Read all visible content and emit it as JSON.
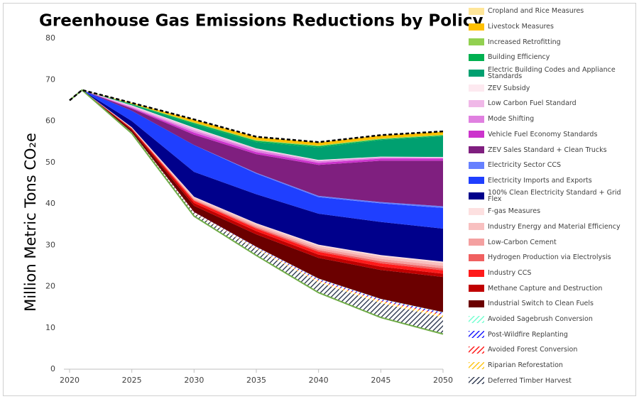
{
  "chart_data": {
    "type": "stacked_area",
    "title": "Greenhouse Gas Emissions Reductions by Policy",
    "y_label": "Million Metric Tons CO₂e",
    "x": [
      2020,
      2021,
      2025,
      2030,
      2035,
      2040,
      2045,
      2050
    ],
    "xlim": [
      2020,
      2050
    ],
    "xticks": [
      2020,
      2025,
      2030,
      2035,
      2040,
      2045,
      2050
    ],
    "ylim": [
      0,
      80
    ],
    "yticks": [
      0,
      10,
      20,
      30,
      40,
      50,
      60,
      70,
      80
    ],
    "net_emissions": [
      65,
      67.5,
      57,
      37,
      27.5,
      18.5,
      12.5,
      8.5
    ],
    "series": [
      {
        "name": "Cropland and Rice Measures",
        "color": "#ffe699",
        "values": [
          0,
          0,
          0,
          0.1,
          0.1,
          0.1,
          0.1,
          0.1
        ]
      },
      {
        "name": "Livestock Measures",
        "color": "#ffc000",
        "values": [
          0,
          0,
          0.2,
          0.6,
          0.7,
          0.7,
          0.7,
          0.7
        ]
      },
      {
        "name": "Increased Retrofitting",
        "color": "#92d050",
        "values": [
          0,
          0,
          0.1,
          0.2,
          0.2,
          0.2,
          0.2,
          0.2
        ]
      },
      {
        "name": "Building Efficiency",
        "color": "#00b050",
        "values": [
          0,
          0,
          0.1,
          0.3,
          0.3,
          0.3,
          0.2,
          0.2
        ]
      },
      {
        "name": "Electric Building Codes and Appliance Standards",
        "color": "#00a070",
        "values": [
          0,
          0,
          0.2,
          0.8,
          1.5,
          3,
          4,
          5
        ]
      },
      {
        "name": "ZEV Subsidy",
        "color": "#fde9f0",
        "values": [
          0,
          0,
          0.1,
          0.2,
          0.1,
          0.1,
          0.1,
          0.1
        ]
      },
      {
        "name": "Low Carbon Fuel Standard",
        "color": "#f0b8e8",
        "values": [
          0,
          0,
          0.3,
          0.5,
          0.3,
          0.2,
          0.1,
          0.1
        ]
      },
      {
        "name": "Mode Shifting",
        "color": "#e080e0",
        "values": [
          0,
          0,
          0.2,
          0.5,
          0.5,
          0.4,
          0.3,
          0.2
        ]
      },
      {
        "name": "Vehicle Fuel Economy Standards",
        "color": "#cc33cc",
        "values": [
          0,
          0,
          0.2,
          0.5,
          0.5,
          0.5,
          0.5,
          0.5
        ]
      },
      {
        "name": "ZEV Sales Standard + Clean Trucks",
        "color": "#7f1f7f",
        "values": [
          0,
          0,
          0.5,
          2.5,
          4.5,
          7.5,
          10,
          11
        ]
      },
      {
        "name": "Electricity Sector CCS",
        "color": "#6680ff",
        "values": [
          0,
          0,
          0,
          0,
          0.2,
          0.3,
          0.3,
          0.4
        ]
      },
      {
        "name": "Electricity Imports and Exports",
        "color": "#1f3fff",
        "values": [
          0,
          0,
          2.5,
          6.5,
          5,
          4,
          4.5,
          5
        ]
      },
      {
        "name": "100% Clean Electricity Standard + Grid Flex",
        "color": "#00008b",
        "values": [
          0,
          0,
          1.5,
          6,
          7,
          7.5,
          8,
          8
        ]
      },
      {
        "name": "F-gas Measures",
        "color": "#fde0e0",
        "values": [
          0,
          0,
          0.1,
          0.2,
          0.2,
          0.3,
          0.3,
          0.3
        ]
      },
      {
        "name": "Industry Energy and Material Efficiency",
        "color": "#f8c0c0",
        "values": [
          0,
          0,
          0.1,
          0.3,
          0.4,
          0.5,
          0.6,
          0.7
        ]
      },
      {
        "name": "Low-Carbon Cement",
        "color": "#f4a0a0",
        "values": [
          0,
          0,
          0.1,
          0.3,
          0.4,
          0.5,
          0.6,
          0.6
        ]
      },
      {
        "name": "Hydrogen Production via Electrolysis",
        "color": "#f06060",
        "values": [
          0,
          0,
          0,
          0.2,
          0.3,
          0.4,
          0.5,
          0.5
        ]
      },
      {
        "name": "Industry CCS",
        "color": "#ff1a1a",
        "values": [
          0,
          0,
          0.1,
          0.5,
          0.6,
          0.7,
          0.8,
          0.8
        ]
      },
      {
        "name": "Methane Capture and Destruction",
        "color": "#c00000",
        "values": [
          0,
          0,
          0.3,
          0.7,
          0.8,
          0.8,
          0.8,
          0.8
        ]
      },
      {
        "name": "Industrial Switch to Clean Fuels",
        "color": "#6b0000",
        "values": [
          0,
          0,
          0.5,
          1.5,
          3,
          5,
          7,
          8.5
        ]
      },
      {
        "name": "Avoided Sagebrush Conversion",
        "color": "#66ffcc",
        "pattern": "hatch",
        "values": [
          0,
          0,
          0,
          0,
          0.1,
          0.1,
          0.1,
          0.1
        ]
      },
      {
        "name": "Post-Wildfire Replanting",
        "color": "#0000ff",
        "pattern": "hatch",
        "values": [
          0,
          0,
          0,
          0.1,
          0.2,
          0.3,
          0.3,
          0.4
        ]
      },
      {
        "name": "Avoided Forest Conversion",
        "color": "#ff0000",
        "pattern": "hatch",
        "values": [
          0,
          0,
          0,
          0.1,
          0.1,
          0.2,
          0.2,
          0.3
        ]
      },
      {
        "name": "Riparian Reforestation",
        "color": "#ffc000",
        "pattern": "hatch",
        "values": [
          0,
          0,
          0,
          0.1,
          0.2,
          0.3,
          0.4,
          0.5
        ]
      },
      {
        "name": "Deferred Timber Harvest",
        "color": "#1f2a44",
        "pattern": "hatch",
        "values": [
          0,
          0,
          0.3,
          0.7,
          1.5,
          2.5,
          3.5,
          4
        ]
      }
    ]
  }
}
